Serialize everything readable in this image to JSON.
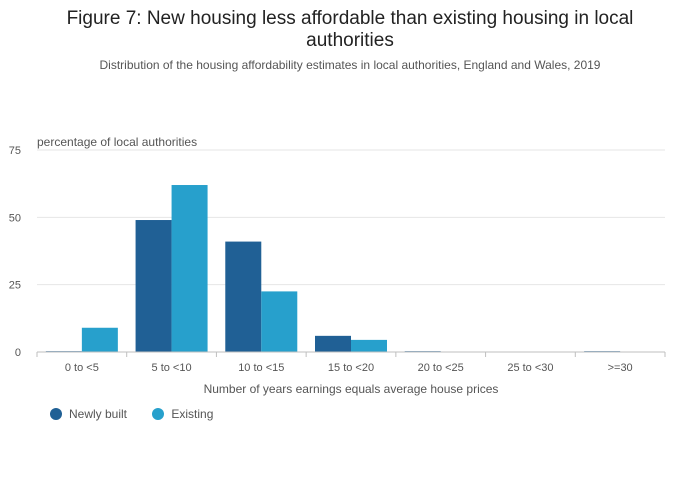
{
  "chart_data": {
    "type": "bar",
    "title": "Figure 7: New housing less affordable than existing housing in local authorities",
    "subtitle": "Distribution of the housing affordability estimates in local authorities, England and Wales, 2019",
    "ylabel": "percentage of local authorities",
    "xlabel": "Number of years earnings equals average house prices",
    "categories": [
      "0 to <5",
      "5 to <10",
      "10 to <15",
      "15 to <20",
      "20 to <25",
      "25 to <30",
      ">=30"
    ],
    "series": [
      {
        "name": "Newly built",
        "color": "#206095",
        "values": [
          0.3,
          49,
          41,
          6,
          0.3,
          0,
          0.3
        ]
      },
      {
        "name": "Existing",
        "color": "#27a0cc",
        "values": [
          9,
          62,
          22.5,
          4.5,
          0,
          0,
          0
        ]
      }
    ],
    "ylim": [
      0,
      75
    ],
    "yticks": [
      0,
      25,
      50,
      75
    ],
    "grid": true,
    "legend": "bottom-left"
  }
}
